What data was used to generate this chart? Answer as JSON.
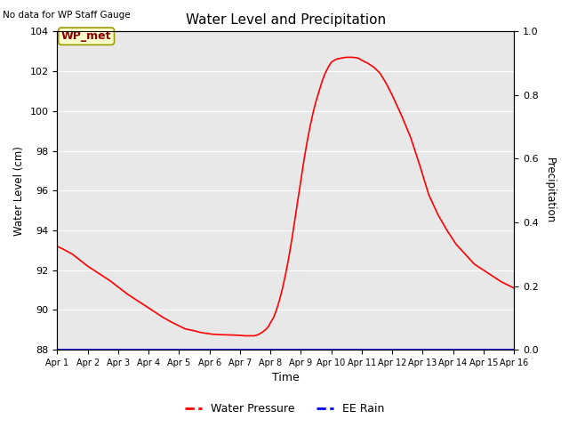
{
  "title": "Water Level and Precipitation",
  "top_left_text": "No data for WP Staff Gauge",
  "ylabel_left": "Water Level (cm)",
  "ylabel_right": "Precipitation",
  "xlabel": "Time",
  "legend_labels": [
    "Water Pressure",
    "EE Rain"
  ],
  "wp_label": "WP_met",
  "ylim_left": [
    88,
    104
  ],
  "ylim_right": [
    0.0,
    1.0
  ],
  "yticks_left": [
    88,
    90,
    92,
    94,
    96,
    98,
    100,
    102,
    104
  ],
  "yticks_right": [
    0.0,
    0.2,
    0.4,
    0.6,
    0.8,
    1.0
  ],
  "xtick_labels": [
    "Apr 1",
    "Apr 2",
    "Apr 3",
    "Apr 4",
    "Apr 5",
    "Apr 6",
    "Apr 7",
    "Apr 8",
    "Apr 9",
    "Apr 10",
    "Apr 11",
    "Apr 12",
    "Apr 13",
    "Apr 14",
    "Apr 15",
    "Apr 16"
  ],
  "bg_color": "#e8e8e8",
  "line_color": "red",
  "rain_color": "blue",
  "water_x": [
    0,
    0.2,
    0.5,
    0.75,
    1.0,
    1.25,
    1.5,
    1.75,
    2.0,
    2.3,
    2.6,
    2.9,
    3.2,
    3.5,
    3.8,
    4.0,
    4.2,
    4.5,
    4.7,
    4.9,
    5.1,
    5.3,
    5.5,
    5.7,
    5.9,
    6.0,
    6.1,
    6.15,
    6.2,
    6.25,
    6.3,
    6.35,
    6.4,
    6.45,
    6.5,
    6.55,
    6.6,
    6.65,
    6.7,
    6.75,
    6.8,
    6.85,
    6.9,
    6.95,
    7.0,
    7.1,
    7.2,
    7.3,
    7.4,
    7.5,
    7.6,
    7.7,
    7.8,
    7.9,
    8.0,
    8.1,
    8.2,
    8.3,
    8.4,
    8.5,
    8.6,
    8.7,
    8.8,
    8.9,
    9.0,
    9.1,
    9.2,
    9.3,
    9.4,
    9.5,
    9.6,
    9.7,
    9.8,
    9.9,
    10.0,
    10.2,
    10.4,
    10.6,
    10.8,
    11.0,
    11.3,
    11.6,
    11.9,
    12.2,
    12.5,
    12.8,
    13.1,
    13.4,
    13.7,
    14.0,
    14.3,
    14.6,
    15.0
  ],
  "water_y": [
    93.2,
    93.05,
    92.8,
    92.5,
    92.2,
    91.95,
    91.7,
    91.45,
    91.15,
    90.8,
    90.5,
    90.2,
    89.9,
    89.6,
    89.35,
    89.2,
    89.05,
    88.95,
    88.87,
    88.82,
    88.78,
    88.76,
    88.75,
    88.74,
    88.73,
    88.72,
    88.71,
    88.7,
    88.7,
    88.7,
    88.7,
    88.7,
    88.7,
    88.7,
    88.71,
    88.73,
    88.76,
    88.8,
    88.85,
    88.9,
    88.96,
    89.02,
    89.1,
    89.2,
    89.35,
    89.6,
    90.0,
    90.5,
    91.1,
    91.8,
    92.6,
    93.5,
    94.5,
    95.5,
    96.5,
    97.5,
    98.4,
    99.2,
    99.9,
    100.5,
    101.0,
    101.5,
    101.9,
    102.2,
    102.45,
    102.55,
    102.62,
    102.65,
    102.68,
    102.7,
    102.7,
    102.7,
    102.68,
    102.65,
    102.55,
    102.4,
    102.2,
    101.9,
    101.4,
    100.8,
    99.8,
    98.7,
    97.3,
    95.8,
    94.8,
    94.0,
    93.3,
    92.8,
    92.3,
    92.0,
    91.7,
    91.4,
    91.1
  ]
}
